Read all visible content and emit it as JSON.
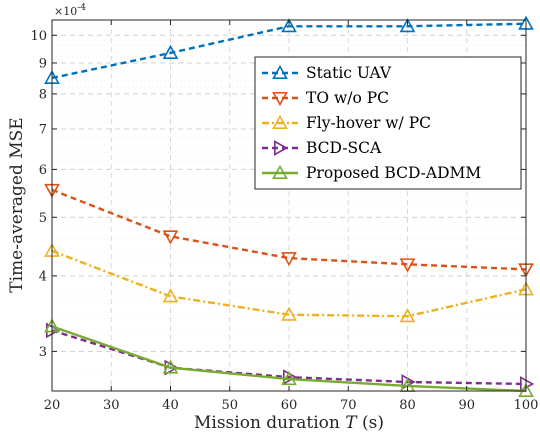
{
  "chart_data": {
    "type": "line",
    "xlabel": "Mission duration",
    "xlabel_var": "T",
    "xlabel_unit": "(s)",
    "ylabel": "Time-averaged MSE",
    "y_exponent": "×10",
    "y_exponent_power": "-4",
    "y_scale": "log",
    "xlim": [
      20,
      100
    ],
    "ylim": [
      2.58,
      10.6
    ],
    "x_ticks": [
      20,
      30,
      40,
      50,
      60,
      70,
      80,
      90,
      100
    ],
    "x_tick_labels": [
      "20",
      "30",
      "40",
      "50",
      "60",
      "70",
      "80",
      "90",
      "100"
    ],
    "y_ticks": [
      3,
      4,
      5,
      6,
      7,
      8,
      9,
      10
    ],
    "y_tick_labels": [
      "3",
      "4",
      "5",
      "6",
      "7",
      "8",
      "9",
      "10"
    ],
    "grid": true,
    "legend_position": "top-right",
    "x": [
      20,
      40,
      60,
      80,
      100
    ],
    "series": [
      {
        "name": "Static UAV",
        "values": [
          8.5,
          9.35,
          10.35,
          10.35,
          10.45
        ],
        "color": "#0072BD",
        "dash": "6,4",
        "marker": "triangle-up"
      },
      {
        "name": "TO w/o PC",
        "values": [
          5.55,
          4.65,
          4.28,
          4.18,
          4.1
        ],
        "color": "#D95319",
        "dash": "6,4",
        "marker": "triangle-down"
      },
      {
        "name": "Fly-hover w/ PC",
        "values": [
          4.4,
          3.7,
          3.45,
          3.43,
          3.8
        ],
        "color": "#EDB120",
        "dash": "7,3,2,3",
        "marker": "triangle-up"
      },
      {
        "name": "BCD-SCA",
        "values": [
          3.25,
          2.82,
          2.72,
          2.67,
          2.65
        ],
        "color": "#7E2F8E",
        "dash": "6,4",
        "marker": "triangle-right"
      },
      {
        "name": "Proposed BCD-ADMM",
        "values": [
          3.3,
          2.82,
          2.7,
          2.63,
          2.58
        ],
        "color": "#77AC30",
        "dash": "",
        "marker": "triangle-up"
      }
    ]
  }
}
